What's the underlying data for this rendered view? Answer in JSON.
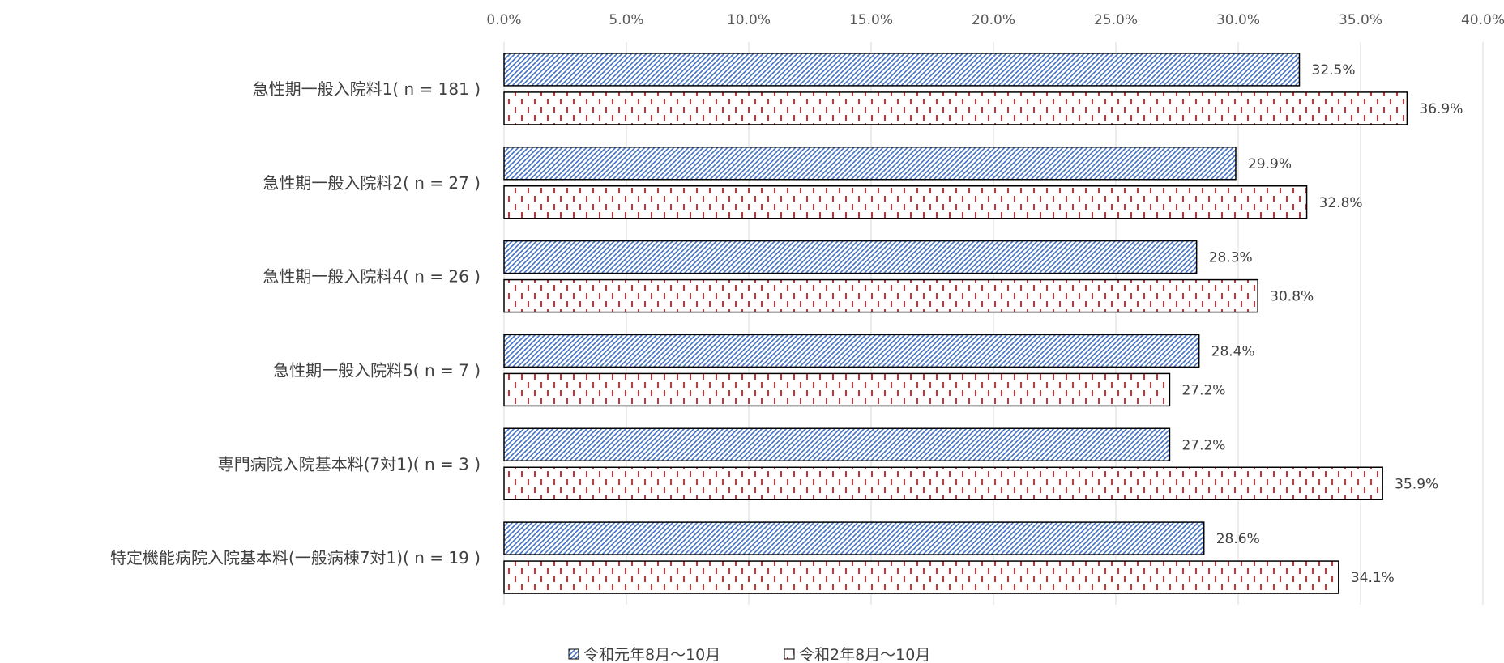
{
  "chart_data": {
    "type": "bar",
    "orientation": "horizontal",
    "categories": [
      "急性期一般入院料1( n = 181 )",
      "急性期一般入院料2( n = 27 )",
      "急性期一般入院料4( n = 26 )",
      "急性期一般入院料5( n = 7 )",
      "専門病院入院基本料(7対1)( n = 3 )",
      "特定機能病院入院基本料(一般病棟7対1)( n = 19 )"
    ],
    "series": [
      {
        "name": "令和元年8月〜10月",
        "values": [
          32.5,
          29.9,
          28.3,
          28.4,
          27.2,
          28.6
        ],
        "color": "#4472c4",
        "pattern": "diagonal-hatch"
      },
      {
        "name": "令和2年8月〜10月",
        "values": [
          36.9,
          32.8,
          30.8,
          27.2,
          35.9,
          34.1
        ],
        "color": "#c00000",
        "pattern": "dashed-vertical"
      }
    ],
    "value_labels": [
      [
        "32.5%",
        "29.9%",
        "28.3%",
        "28.4%",
        "27.2%",
        "28.6%"
      ],
      [
        "36.9%",
        "32.8%",
        "30.8%",
        "27.2%",
        "35.9%",
        "34.1%"
      ]
    ],
    "xlim": [
      0,
      40
    ],
    "xticks": [
      0,
      5,
      10,
      15,
      20,
      25,
      30,
      35,
      40
    ],
    "xtick_labels": [
      "0.0%",
      "5.0%",
      "10.0%",
      "15.0%",
      "20.0%",
      "25.0%",
      "30.0%",
      "35.0%",
      "40.0%"
    ],
    "axis_position": "top",
    "grid": true,
    "legend": "bottom",
    "title": "",
    "xlabel": "",
    "ylabel": ""
  }
}
